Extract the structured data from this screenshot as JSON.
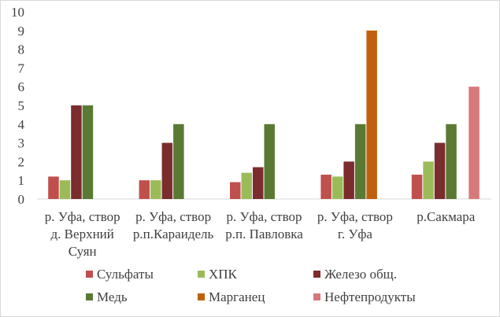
{
  "chart_data": {
    "type": "bar",
    "title": "",
    "xlabel": "",
    "ylabel": "",
    "ylim": [
      0,
      10
    ],
    "yticks": [
      0,
      1,
      2,
      3,
      4,
      5,
      6,
      7,
      8,
      9,
      10
    ],
    "grid": false,
    "legend_position": "bottom",
    "categories": [
      [
        "р. Уфа, створ",
        "д. Верхний",
        "Суян"
      ],
      [
        "р. Уфа, створ",
        "р.п.Караидель"
      ],
      [
        "р. Уфа, створ",
        "р.п. Павловка"
      ],
      [
        "р. Уфа, створ",
        "г. Уфа"
      ],
      [
        "р.Сакмара"
      ]
    ],
    "series": [
      {
        "name": "Сульфаты",
        "color": "#c0504d",
        "values": [
          1.2,
          1.0,
          0.9,
          1.3,
          1.3
        ]
      },
      {
        "name": "ХПК",
        "color": "#9bbb59",
        "values": [
          1.0,
          1.0,
          1.4,
          1.2,
          2.0
        ]
      },
      {
        "name": "Железо общ.",
        "color": "#7b2c2c",
        "values": [
          5.0,
          3.0,
          1.7,
          2.0,
          3.0
        ]
      },
      {
        "name": "Медь",
        "color": "#5a7a34",
        "values": [
          5.0,
          4.0,
          4.0,
          4.0,
          4.0
        ]
      },
      {
        "name": "Марганец",
        "color": "#c0600e",
        "values": [
          null,
          null,
          null,
          9.0,
          null
        ]
      },
      {
        "name": "Нефтепродукты",
        "color": "#d9787a",
        "values": [
          null,
          null,
          null,
          null,
          6.0
        ]
      }
    ]
  }
}
